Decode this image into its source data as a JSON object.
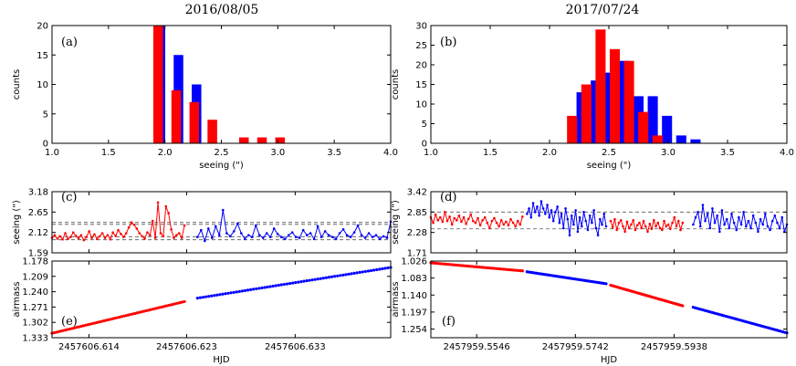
{
  "titles": [
    "2016/08/05",
    "2017/07/24"
  ],
  "colors": {
    "red": "#ff0000",
    "blue": "#0000ff",
    "axis": "#000000",
    "dash": "#555555"
  },
  "chart_data": [
    {
      "id": "hist_a",
      "type": "bar",
      "panel_label": "(a)",
      "xlabel": "seeing (\")",
      "ylabel": "counts",
      "xlim": [
        1.0,
        4.0
      ],
      "ylim": [
        0,
        20
      ],
      "xticks": [
        1.0,
        1.5,
        2.0,
        2.5,
        3.0,
        3.5,
        4.0
      ],
      "xtick_labels": [
        "1.0",
        "1.5",
        "2.0",
        "2.5",
        "3.0",
        "3.5",
        "4.0"
      ],
      "yticks": [
        0,
        5,
        10,
        15,
        20
      ],
      "ytick_labels": [
        "0",
        "5",
        "10",
        "15",
        "20"
      ],
      "bar_width": 0.085,
      "series": [
        {
          "color": "blue",
          "x": [
            1.96,
            2.12,
            2.28
          ],
          "values": [
            20,
            15,
            10
          ]
        },
        {
          "color": "red",
          "x": [
            1.94,
            2.1,
            2.26,
            2.42,
            2.7,
            2.86,
            3.02
          ],
          "values": [
            20,
            9,
            7,
            4,
            1,
            1,
            1
          ]
        }
      ]
    },
    {
      "id": "hist_b",
      "type": "bar",
      "panel_label": "(b)",
      "xlabel": "seeing (\")",
      "ylabel": "counts",
      "xlim": [
        1.0,
        4.0
      ],
      "ylim": [
        0,
        30
      ],
      "xticks": [
        1.0,
        1.5,
        2.0,
        2.5,
        3.0,
        3.5,
        4.0
      ],
      "xtick_labels": [
        "1.0",
        "1.5",
        "2.0",
        "2.5",
        "3.0",
        "3.5",
        "4.0"
      ],
      "yticks": [
        0,
        5,
        10,
        15,
        20,
        25,
        30
      ],
      "ytick_labels": [
        "0",
        "5",
        "10",
        "15",
        "20",
        "25",
        "30"
      ],
      "bar_width": 0.085,
      "series": [
        {
          "color": "blue",
          "x": [
            2.27,
            2.39,
            2.51,
            2.63,
            2.75,
            2.87,
            2.99,
            3.11,
            3.23
          ],
          "values": [
            13,
            16,
            18,
            21,
            12,
            12,
            7,
            2,
            1
          ]
        },
        {
          "color": "red",
          "x": [
            2.19,
            2.31,
            2.43,
            2.55,
            2.67,
            2.79,
            2.91,
            3.03
          ],
          "values": [
            7,
            15,
            29,
            24,
            21,
            8,
            2,
            0
          ]
        }
      ]
    },
    {
      "id": "seeing_c",
      "type": "line",
      "panel_label": "(c)",
      "ylabel": "seeing (\")",
      "xlim": [
        2457606.6106,
        2457606.6418
      ],
      "ylim": [
        1.59,
        3.18
      ],
      "yticks": [
        1.59,
        2.12,
        2.65,
        3.18
      ],
      "ytick_labels": [
        "1.59",
        "2.12",
        "2.65",
        "3.18"
      ],
      "xticks": [
        2457606.614,
        2457606.623,
        2457606.633
      ],
      "dashed_levels": [
        1.93,
        2.38,
        2.01,
        2.33
      ],
      "series": [
        {
          "color": "red",
          "x0": 2457606.6106,
          "x1": 2457606.6228,
          "y": [
            1.98,
            2.05,
            1.96,
            2.02,
            1.94,
            2.1,
            1.95,
            2.0,
            2.12,
            2.03,
            1.97,
            2.05,
            1.92,
            2.0,
            2.15,
            1.98,
            2.07,
            1.95,
            2.02,
            2.1,
            1.98,
            2.05,
            1.94,
            2.12,
            2.03,
            2.18,
            2.08,
            2.0,
            2.1,
            2.25,
            2.38,
            2.32,
            2.22,
            2.1,
            2.02,
            1.96,
            2.12,
            2.05,
            2.42,
            1.98,
            2.9,
            2.1,
            2.02,
            2.8,
            2.62,
            2.2,
            1.98,
            2.05,
            2.1,
            1.98,
            2.3
          ]
        },
        {
          "color": "blue",
          "x0": 2457606.624,
          "x1": 2457606.6418,
          "y": [
            2.0,
            2.18,
            1.9,
            2.22,
            1.98,
            2.28,
            2.05,
            2.7,
            2.1,
            2.02,
            2.15,
            2.35,
            2.1,
            1.95,
            2.05,
            2.0,
            2.3,
            2.05,
            1.98,
            2.1,
            2.0,
            2.22,
            2.08,
            2.0,
            1.95,
            2.05,
            2.12,
            2.0,
            1.98,
            2.18,
            2.05,
            2.1,
            1.95,
            2.28,
            2.0,
            2.15,
            2.05,
            2.0,
            1.95,
            2.1,
            2.2,
            2.05,
            2.0,
            2.12,
            2.3,
            2.05,
            1.98,
            2.1,
            2.0,
            2.05,
            1.95,
            2.02,
            1.98,
            2.4
          ]
        }
      ]
    },
    {
      "id": "seeing_d",
      "type": "line",
      "panel_label": "(d)",
      "ylabel": "seeing (\")",
      "xlim": [
        2457959.5455,
        2457959.6162
      ],
      "ylim": [
        1.71,
        3.42
      ],
      "yticks": [
        1.71,
        2.28,
        2.85,
        3.42
      ],
      "ytick_labels": [
        "1.71",
        "2.28",
        "2.85",
        "3.42"
      ],
      "xticks": [
        2457959.5546,
        2457959.5742,
        2457959.5938
      ],
      "dashed_levels": [
        2.85,
        2.38
      ],
      "series": [
        {
          "color": "red",
          "x0": 2457959.5455,
          "x1": 2457959.5637,
          "y": [
            2.7,
            2.55,
            2.78,
            2.62,
            2.7,
            2.58,
            2.85,
            2.6,
            2.72,
            2.5,
            2.68,
            2.62,
            2.75,
            2.58,
            2.7,
            2.52,
            2.66,
            2.78,
            2.6,
            2.55,
            2.68,
            2.48,
            2.62,
            2.7,
            2.55,
            2.4,
            2.6,
            2.68,
            2.55,
            2.45,
            2.62,
            2.5,
            2.58,
            2.48,
            2.65,
            2.55,
            2.45,
            2.6,
            2.5,
            2.72
          ]
        },
        {
          "color": "blue",
          "x0": 2457959.5646,
          "x1": 2457959.5803,
          "y": [
            2.8,
            2.95,
            2.7,
            3.1,
            2.85,
            3.0,
            2.75,
            3.15,
            2.95,
            2.8,
            3.05,
            2.7,
            2.9,
            2.6,
            2.85,
            3.0,
            2.55,
            2.8,
            2.4,
            2.95,
            2.65,
            2.2,
            2.75,
            2.5,
            2.9,
            2.3,
            2.7,
            2.45,
            2.85,
            2.6,
            2.35,
            2.75,
            2.55,
            2.9,
            2.4,
            2.2,
            2.65,
            2.5,
            2.8,
            2.45
          ]
        },
        {
          "color": "red",
          "x0": 2457959.5812,
          "x1": 2457959.5955,
          "y": [
            2.6,
            2.42,
            2.65,
            2.35,
            2.55,
            2.62,
            2.45,
            2.3,
            2.58,
            2.4,
            2.5,
            2.62,
            2.35,
            2.48,
            2.55,
            2.4,
            2.6,
            2.45,
            2.3,
            2.52,
            2.38,
            2.62,
            2.45,
            2.55,
            2.4,
            2.35,
            2.6,
            2.45,
            2.5,
            2.38,
            2.55,
            2.7,
            2.45,
            2.6,
            2.35,
            2.55
          ]
        },
        {
          "color": "blue",
          "x0": 2457959.5976,
          "x1": 2457959.6162,
          "y": [
            2.5,
            2.7,
            2.85,
            2.45,
            3.05,
            2.6,
            2.8,
            2.4,
            2.95,
            2.55,
            2.75,
            2.3,
            2.9,
            2.5,
            2.65,
            2.4,
            2.8,
            2.55,
            2.35,
            2.7,
            2.5,
            2.85,
            2.45,
            2.6,
            2.4,
            2.75,
            2.55,
            2.3,
            2.65,
            2.5,
            2.8,
            2.45,
            2.35,
            2.6,
            2.75,
            2.55,
            2.4,
            2.7,
            2.3,
            2.5
          ]
        }
      ]
    },
    {
      "id": "airmass_e",
      "type": "scatter",
      "panel_label": "(e)",
      "ylabel": "airmass",
      "xlabel": "HJD",
      "xlim": [
        2457606.6106,
        2457606.6418
      ],
      "ylim": [
        1.178,
        1.333
      ],
      "y_inverted": true,
      "yticks": [
        1.178,
        1.209,
        1.24,
        1.271,
        1.302,
        1.333
      ],
      "ytick_labels": [
        "1.178",
        "1.209",
        "1.240",
        "1.271",
        "1.302",
        "1.333"
      ],
      "xticks": [
        2457606.614,
        2457606.623,
        2457606.633
      ],
      "xtick_labels": [
        "2457606.614",
        "2457606.623",
        "2457606.633"
      ],
      "series": [
        {
          "color": "red",
          "x0": 2457606.6106,
          "x1": 2457606.6228,
          "y0": 1.324,
          "y1": 1.26,
          "n": 60
        },
        {
          "color": "blue",
          "x0": 2457606.624,
          "x1": 2457606.6418,
          "y0": 1.253,
          "y1": 1.191,
          "n": 70
        }
      ]
    },
    {
      "id": "airmass_f",
      "type": "scatter",
      "panel_label": "(f)",
      "ylabel": "airmass",
      "xlabel": "HJD",
      "xlim": [
        2457959.5455,
        2457959.6162
      ],
      "ylim": [
        1.026,
        1.283
      ],
      "y_inverted": true,
      "yticks": [
        1.026,
        1.083,
        1.14,
        1.197,
        1.254
      ],
      "ytick_labels": [
        "1.026",
        "1.083",
        "1.140",
        "1.197",
        "1.254"
      ],
      "xticks": [
        2457959.5546,
        2457959.5742,
        2457959.5938
      ],
      "xtick_labels": [
        "2457959.5546",
        "2457959.5742",
        "2457959.5938"
      ],
      "series": [
        {
          "color": "red",
          "x0": 2457959.5455,
          "x1": 2457959.5637,
          "y0": 1.032,
          "y1": 1.059,
          "n": 50
        },
        {
          "color": "blue",
          "x0": 2457959.5646,
          "x1": 2457959.5803,
          "y0": 1.062,
          "y1": 1.102,
          "n": 45
        },
        {
          "color": "red",
          "x0": 2457959.5812,
          "x1": 2457959.5955,
          "y0": 1.107,
          "y1": 1.176,
          "n": 45
        },
        {
          "color": "blue",
          "x0": 2457959.5976,
          "x1": 2457959.6162,
          "y0": 1.181,
          "y1": 1.267,
          "n": 50
        }
      ]
    }
  ]
}
